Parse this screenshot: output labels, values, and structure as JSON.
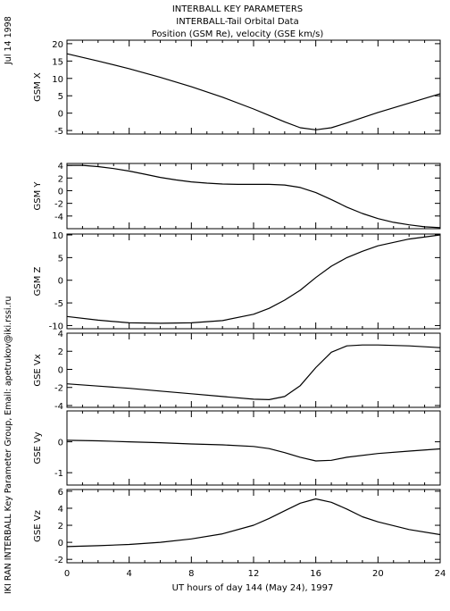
{
  "header": {
    "line1": "INTERBALL KEY PARAMETERS",
    "line2": "INTERBALL-Tail Orbital Data",
    "line3": "Position (GSM Re), velocity (GSE km/s)"
  },
  "side": {
    "date": "Jul 14 1998",
    "credit": "IKI RAN INTERBALL Key Parameter Group, Email: apetrukov@iki.rssi.ru"
  },
  "chart_data": {
    "type": "line",
    "x_label": "UT hours of day 144 (May 24), 1997",
    "x_range": [
      0,
      24
    ],
    "x_ticks": [
      0,
      4,
      8,
      12,
      16,
      20,
      24
    ],
    "grid": false,
    "panels": [
      {
        "ylabel": "GSM X",
        "ylim": [
          -6,
          21
        ],
        "yticks": [
          -5,
          0,
          5,
          10,
          15,
          20
        ],
        "x": [
          0,
          2,
          4,
          6,
          8,
          10,
          12,
          14,
          15,
          16,
          17,
          18,
          20,
          22,
          24
        ],
        "values": [
          17.1,
          15.0,
          12.8,
          10.3,
          7.6,
          4.6,
          1.2,
          -2.5,
          -4.2,
          -4.8,
          -4.2,
          -2.8,
          0.2,
          2.9,
          5.6
        ]
      },
      {
        "ylabel": "GSM Y",
        "ylim": [
          -6,
          4.3
        ],
        "yticks": [
          -4,
          -2,
          0,
          2,
          4
        ],
        "x": [
          0,
          1,
          2,
          3,
          4,
          5,
          6,
          7,
          8,
          9,
          10,
          11,
          12,
          13,
          14,
          15,
          16,
          17,
          18,
          19,
          20,
          21,
          22,
          23,
          24
        ],
        "values": [
          4.0,
          4.0,
          3.8,
          3.5,
          3.1,
          2.6,
          2.1,
          1.7,
          1.4,
          1.2,
          1.05,
          1.0,
          1.0,
          1.0,
          0.9,
          0.5,
          -0.3,
          -1.4,
          -2.6,
          -3.6,
          -4.4,
          -5.0,
          -5.4,
          -5.7,
          -5.85
        ]
      },
      {
        "ylabel": "GSM Z",
        "ylim": [
          -10.7,
          10.2
        ],
        "yticks": [
          -10,
          -5,
          0,
          5,
          10
        ],
        "x": [
          0,
          2,
          4,
          6,
          8,
          10,
          12,
          13,
          14,
          15,
          16,
          17,
          18,
          19,
          20,
          22,
          24
        ],
        "values": [
          -8.0,
          -8.8,
          -9.4,
          -9.5,
          -9.4,
          -8.9,
          -7.5,
          -6.2,
          -4.4,
          -2.2,
          0.6,
          3.1,
          5.0,
          6.4,
          7.6,
          9.1,
          10.0
        ]
      },
      {
        "ylabel": "GSE Vx",
        "ylim": [
          -4.2,
          4.0
        ],
        "yticks": [
          -4,
          -2,
          0,
          2,
          4
        ],
        "x": [
          0,
          2,
          4,
          6,
          8,
          10,
          12,
          13,
          14,
          15,
          16,
          17,
          18,
          19,
          20,
          22,
          24
        ],
        "values": [
          -1.6,
          -1.85,
          -2.1,
          -2.4,
          -2.7,
          -3.0,
          -3.3,
          -3.35,
          -3.0,
          -1.8,
          0.2,
          1.9,
          2.6,
          2.7,
          2.7,
          2.6,
          2.4
        ]
      },
      {
        "ylabel": "GSE Vy",
        "ylim": [
          -1.4,
          1.0
        ],
        "yticks": [
          -1,
          0
        ],
        "x": [
          0,
          2,
          4,
          6,
          8,
          10,
          12,
          13,
          14,
          15,
          16,
          17,
          18,
          20,
          22,
          24
        ],
        "values": [
          0.05,
          0.03,
          0.0,
          -0.03,
          -0.07,
          -0.1,
          -0.15,
          -0.22,
          -0.35,
          -0.5,
          -0.62,
          -0.6,
          -0.5,
          -0.38,
          -0.3,
          -0.23
        ]
      },
      {
        "ylabel": "GSE Vz",
        "ylim": [
          -2.4,
          6.2
        ],
        "yticks": [
          -2,
          0,
          2,
          4,
          6
        ],
        "x": [
          0,
          2,
          4,
          6,
          8,
          10,
          12,
          13,
          14,
          15,
          16,
          17,
          18,
          19,
          20,
          22,
          24
        ],
        "values": [
          -0.5,
          -0.4,
          -0.25,
          0.0,
          0.4,
          1.0,
          2.0,
          2.8,
          3.7,
          4.6,
          5.1,
          4.7,
          3.9,
          3.0,
          2.4,
          1.5,
          0.9
        ]
      }
    ]
  }
}
